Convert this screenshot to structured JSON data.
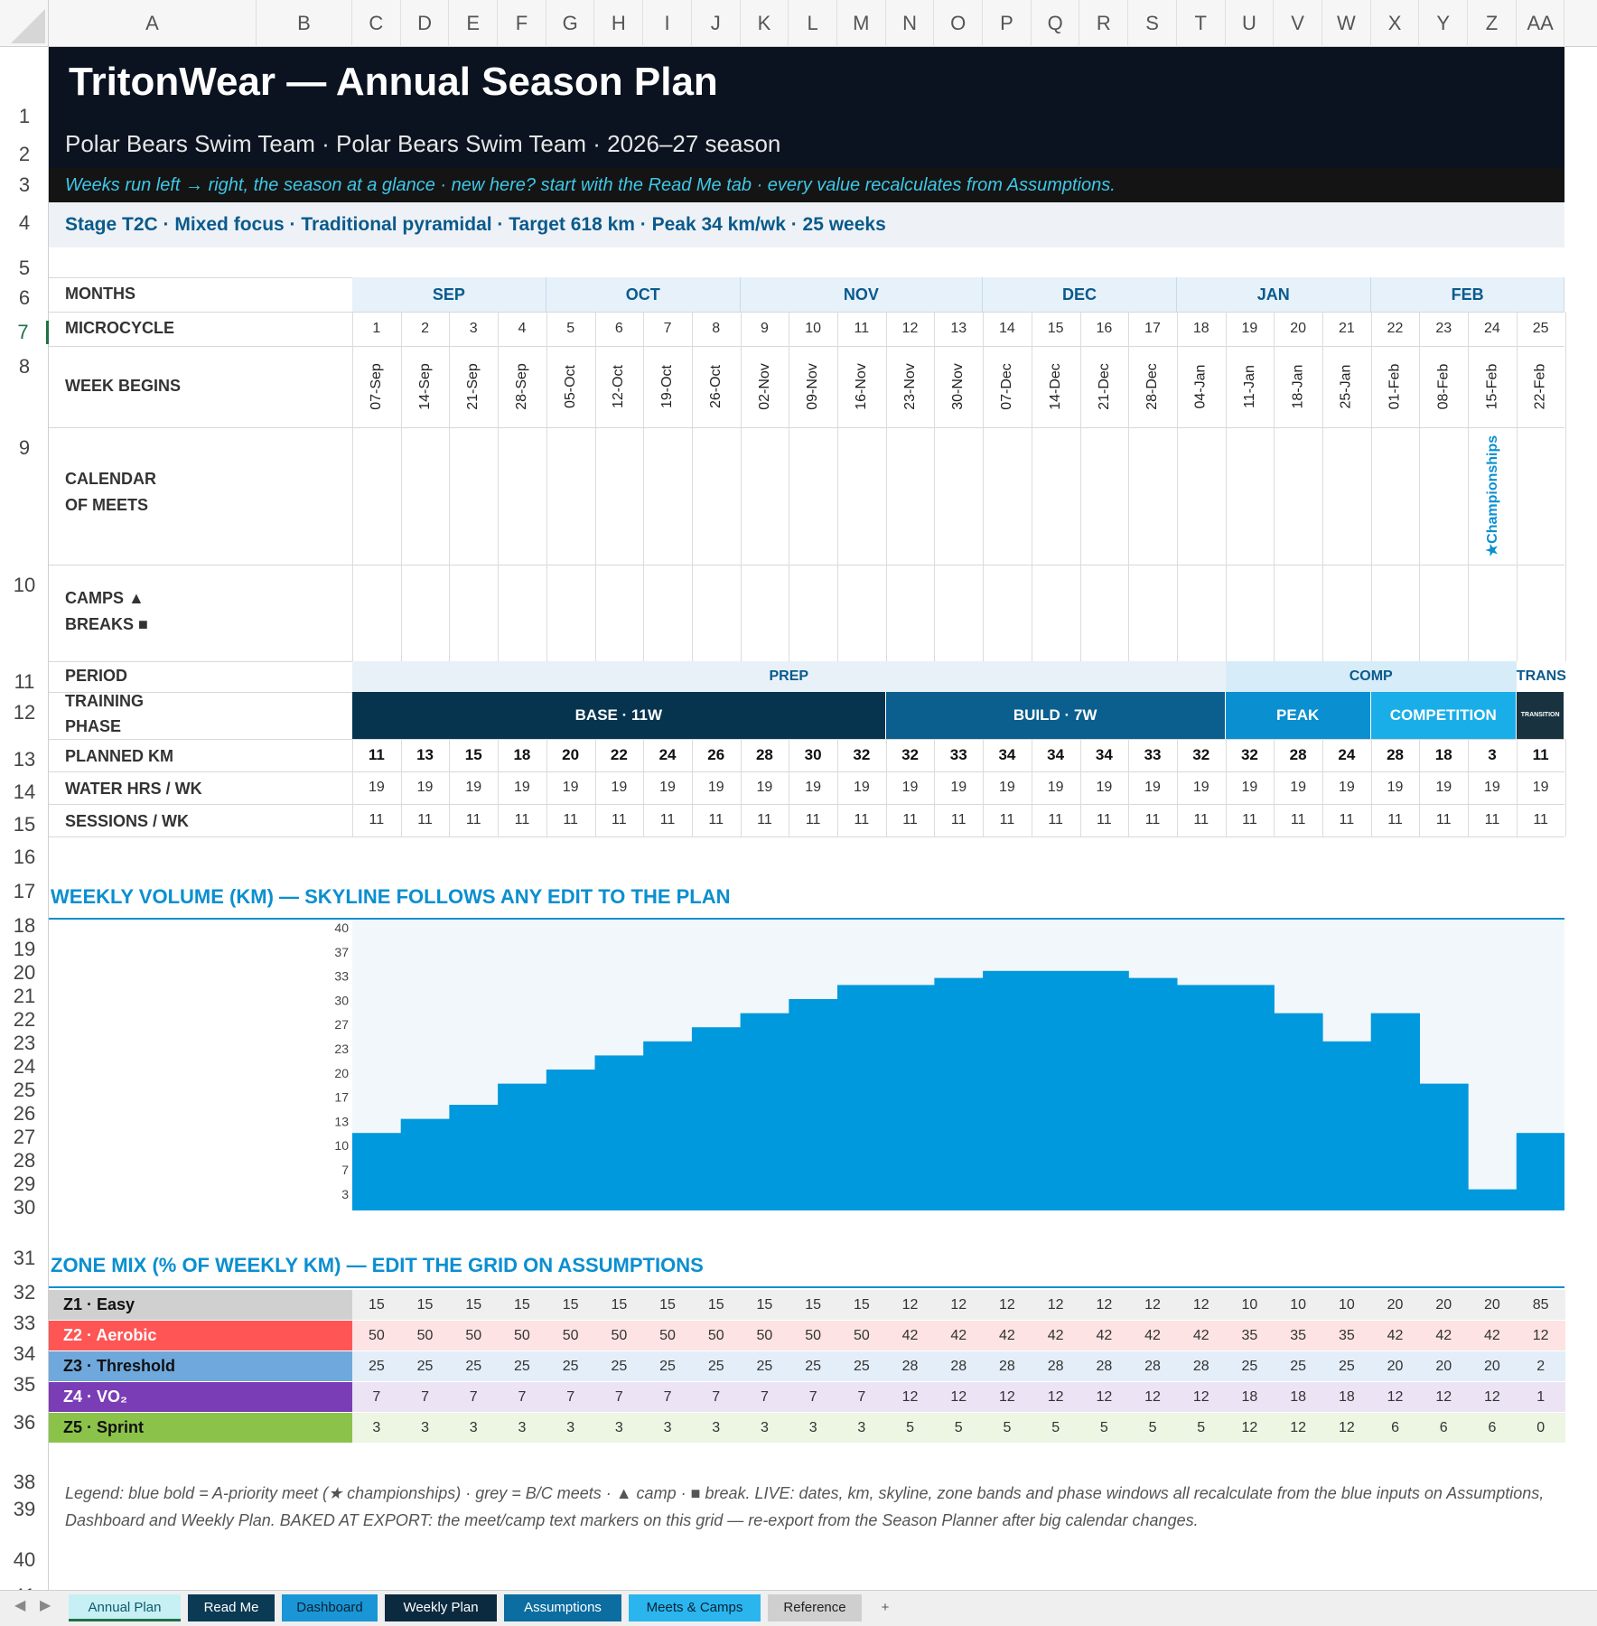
{
  "columns": [
    "A",
    "B",
    "C",
    "D",
    "E",
    "F",
    "G",
    "H",
    "I",
    "J",
    "K",
    "L",
    "M",
    "N",
    "O",
    "P",
    "Q",
    "R",
    "S",
    "T",
    "U",
    "V",
    "W",
    "X",
    "Y",
    "Z",
    "AA"
  ],
  "rows": [
    "1",
    "2",
    "3",
    "4",
    "5",
    "6",
    "7",
    "8",
    "9",
    "10",
    "11",
    "12",
    "13",
    "14",
    "15",
    "16",
    "17",
    "18",
    "19",
    "20",
    "21",
    "22",
    "23",
    "24",
    "25",
    "26",
    "27",
    "28",
    "29",
    "30",
    "31",
    "32",
    "33",
    "34",
    "35",
    "36",
    "38",
    "39",
    "40",
    "41"
  ],
  "header": {
    "title": "TritonWear — Annual Season Plan",
    "subtitle": "Polar Bears Swim Team · Polar Bears Swim Team · 2026–27 season",
    "note": "Weeks run left → right, the season at a glance · new here? start with the Read Me tab · every value recalculates from Assumptions.",
    "stage": "Stage T2C · Mixed focus · Traditional pyramidal · Target 618 km · Peak 34 km/wk · 25 weeks"
  },
  "labels": {
    "months": "MONTHS",
    "microcycle": "MICROCYCLE",
    "week_begins": "WEEK BEGINS",
    "calendar_1": "CALENDAR",
    "calendar_2": "OF MEETS",
    "camps": "CAMPS ▲",
    "breaks": "BREAKS ■",
    "period": "PERIOD",
    "training_1": "TRAINING",
    "training_2": "PHASE",
    "planned_km": "PLANNED KM",
    "water_hrs": "WATER HRS / WK",
    "sessions": "SESSIONS / WK"
  },
  "months": [
    {
      "label": "SEP",
      "start": 0,
      "span": 4
    },
    {
      "label": "OCT",
      "start": 4,
      "span": 4
    },
    {
      "label": "NOV",
      "start": 8,
      "span": 5
    },
    {
      "label": "DEC",
      "start": 13,
      "span": 4
    },
    {
      "label": "JAN",
      "start": 17,
      "span": 4
    },
    {
      "label": "FEB",
      "start": 21,
      "span": 4
    }
  ],
  "weeks": [
    "1",
    "2",
    "3",
    "4",
    "5",
    "6",
    "7",
    "8",
    "9",
    "10",
    "11",
    "12",
    "13",
    "14",
    "15",
    "16",
    "17",
    "18",
    "19",
    "20",
    "21",
    "22",
    "23",
    "24",
    "25"
  ],
  "week_dates": [
    "07-Sep",
    "14-Sep",
    "21-Sep",
    "28-Sep",
    "05-Oct",
    "12-Oct",
    "19-Oct",
    "26-Oct",
    "02-Nov",
    "09-Nov",
    "16-Nov",
    "23-Nov",
    "30-Nov",
    "07-Dec",
    "14-Dec",
    "21-Dec",
    "28-Dec",
    "04-Jan",
    "11-Jan",
    "18-Jan",
    "25-Jan",
    "01-Feb",
    "08-Feb",
    "15-Feb",
    "22-Feb"
  ],
  "meets": [
    {
      "week": 24,
      "label": "★Championships"
    }
  ],
  "periods": [
    {
      "label": "PREP",
      "start": 0,
      "span": 18,
      "color": "#e9f1f8"
    },
    {
      "label": "COMP",
      "start": 18,
      "span": 6,
      "color": "#d6ecf8"
    },
    {
      "label": "TRANS",
      "start": 24,
      "span": 1,
      "color": "#ffffff"
    }
  ],
  "phases": [
    {
      "label": "BASE · 11W",
      "start": 0,
      "span": 11,
      "color": "#06344f"
    },
    {
      "label": "BUILD · 7W",
      "start": 11,
      "span": 7,
      "color": "#0a5f8f"
    },
    {
      "label": "PEAK",
      "start": 18,
      "span": 3,
      "color": "#0a8fd0"
    },
    {
      "label": "COMPETITION",
      "start": 21,
      "span": 3,
      "color": "#1aaee8"
    },
    {
      "label": "TRANSITION",
      "start": 24,
      "span": 1,
      "color": "#18323f"
    }
  ],
  "planned_km": [
    "11",
    "13",
    "15",
    "18",
    "20",
    "22",
    "24",
    "26",
    "28",
    "30",
    "32",
    "32",
    "33",
    "34",
    "34",
    "34",
    "33",
    "32",
    "32",
    "28",
    "24",
    "28",
    "18",
    "3",
    "11"
  ],
  "water_hrs": [
    "19",
    "19",
    "19",
    "19",
    "19",
    "19",
    "19",
    "19",
    "19",
    "19",
    "19",
    "19",
    "19",
    "19",
    "19",
    "19",
    "19",
    "19",
    "19",
    "19",
    "19",
    "19",
    "19",
    "19",
    "19"
  ],
  "sessions": [
    "11",
    "11",
    "11",
    "11",
    "11",
    "11",
    "11",
    "11",
    "11",
    "11",
    "11",
    "11",
    "11",
    "11",
    "11",
    "11",
    "11",
    "11",
    "11",
    "11",
    "11",
    "11",
    "11",
    "11",
    "11"
  ],
  "volume_title": "WEEKLY VOLUME (KM) — SKYLINE FOLLOWS ANY EDIT TO THE PLAN",
  "chart_data": {
    "type": "area",
    "title": "WEEKLY VOLUME (KM) — SKYLINE FOLLOWS ANY EDIT TO THE PLAN",
    "categories": [
      "1",
      "2",
      "3",
      "4",
      "5",
      "6",
      "7",
      "8",
      "9",
      "10",
      "11",
      "12",
      "13",
      "14",
      "15",
      "16",
      "17",
      "18",
      "19",
      "20",
      "21",
      "22",
      "23",
      "24",
      "25"
    ],
    "values": [
      11,
      13,
      15,
      18,
      20,
      22,
      24,
      26,
      28,
      30,
      32,
      32,
      33,
      34,
      34,
      34,
      33,
      32,
      32,
      28,
      24,
      28,
      18,
      3,
      11
    ],
    "ylim": [
      0,
      40
    ],
    "yticks": [
      "40",
      "37",
      "33",
      "30",
      "27",
      "23",
      "20",
      "17",
      "13",
      "10",
      "7",
      "3"
    ],
    "color": "#0099dd"
  },
  "zone_title": "ZONE MIX (% OF WEEKLY KM) — EDIT THE GRID ON ASSUMPTIONS",
  "zones": [
    {
      "label": "Z1 · Easy",
      "lblbg": "#d0d0d0",
      "lblcolor": "#111",
      "rowbg": "#efefef",
      "values": [
        "15",
        "15",
        "15",
        "15",
        "15",
        "15",
        "15",
        "15",
        "15",
        "15",
        "15",
        "12",
        "12",
        "12",
        "12",
        "12",
        "12",
        "12",
        "10",
        "10",
        "10",
        "20",
        "20",
        "20",
        "85"
      ]
    },
    {
      "label": "Z2 · Aerobic",
      "lblbg": "#ff5555",
      "lblcolor": "#fff",
      "rowbg": "#fde3e3",
      "values": [
        "50",
        "50",
        "50",
        "50",
        "50",
        "50",
        "50",
        "50",
        "50",
        "50",
        "50",
        "42",
        "42",
        "42",
        "42",
        "42",
        "42",
        "42",
        "35",
        "35",
        "35",
        "42",
        "42",
        "42",
        "12"
      ]
    },
    {
      "label": "Z3 · Threshold",
      "lblbg": "#6fa8dc",
      "lblcolor": "#111",
      "rowbg": "#e3eef8",
      "values": [
        "25",
        "25",
        "25",
        "25",
        "25",
        "25",
        "25",
        "25",
        "25",
        "25",
        "25",
        "28",
        "28",
        "28",
        "28",
        "28",
        "28",
        "28",
        "25",
        "25",
        "25",
        "20",
        "20",
        "20",
        "2"
      ]
    },
    {
      "label": "Z4 · VO₂",
      "lblbg": "#7a3db5",
      "lblcolor": "#fff",
      "rowbg": "#ece3f5",
      "values": [
        "7",
        "7",
        "7",
        "7",
        "7",
        "7",
        "7",
        "7",
        "7",
        "7",
        "7",
        "12",
        "12",
        "12",
        "12",
        "12",
        "12",
        "12",
        "18",
        "18",
        "18",
        "12",
        "12",
        "12",
        "1"
      ]
    },
    {
      "label": "Z5 · Sprint",
      "lblbg": "#8bc34a",
      "lblcolor": "#111",
      "rowbg": "#edf5e3",
      "values": [
        "3",
        "3",
        "3",
        "3",
        "3",
        "3",
        "3",
        "3",
        "3",
        "3",
        "3",
        "5",
        "5",
        "5",
        "5",
        "5",
        "5",
        "5",
        "12",
        "12",
        "12",
        "6",
        "6",
        "6",
        "0"
      ]
    }
  ],
  "legend": "Legend: blue bold = A-priority meet (★ championships) · grey = B/C meets · ▲ camp · ■ break.  LIVE: dates, km, skyline, zone bands and phase windows all recalculate from the blue inputs on Assumptions, Dashboard and Weekly Plan.  BAKED AT EXPORT: the meet/camp text markers on this grid — re-export from the Season Planner after big calendar changes.",
  "tabs": [
    {
      "label": "Annual Plan",
      "bg": "#c7f0f4",
      "color": "#0a5a6c",
      "active": true
    },
    {
      "label": "Read Me",
      "bg": "#0b3a55",
      "color": "#fff"
    },
    {
      "label": "Dashboard",
      "bg": "#1a95d6",
      "color": "#0b2230"
    },
    {
      "label": "Weekly Plan",
      "bg": "#0b2a3f",
      "color": "#fff"
    },
    {
      "label": "Assumptions",
      "bg": "#0b6da0",
      "color": "#fff"
    },
    {
      "label": "Meets & Camps",
      "bg": "#2ab5ee",
      "color": "#0b2230"
    },
    {
      "label": "Reference",
      "bg": "#cfcfcf",
      "color": "#222"
    },
    {
      "label": "+",
      "bg": "transparent",
      "color": "#555"
    }
  ]
}
